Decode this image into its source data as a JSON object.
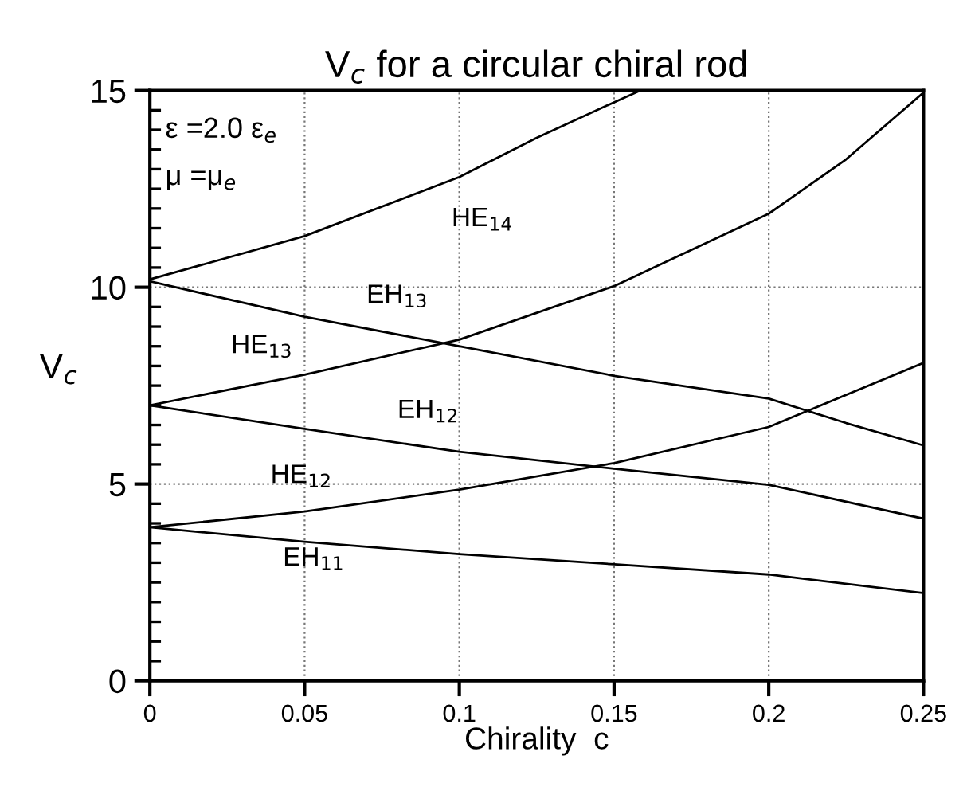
{
  "chart_data": {
    "type": "line",
    "title": "V$_{c}$ for a circular chiral rod",
    "xlabel": "Chirality  c",
    "ylabel": "V$_{c}$",
    "xlim": [
      0,
      0.25
    ],
    "ylim": [
      0,
      15
    ],
    "xticks": [
      0,
      0.05,
      0.1,
      0.15,
      0.2,
      0.25
    ],
    "yticks": [
      0,
      5,
      10,
      15
    ],
    "grid": true,
    "line_style": "solid",
    "marker": "none",
    "series": [
      {
        "color": "#000000",
        "x": [
          0,
          0.05,
          0.1,
          0.125,
          0.15,
          0.1585
        ],
        "values": [
          10.2,
          11.3,
          12.8,
          13.8,
          14.7,
          15
        ]
      },
      {
        "color": "#000000",
        "x": [
          0,
          0.05,
          0.1,
          0.15,
          0.2,
          0.225,
          0.25
        ],
        "values": [
          10.15,
          9.25,
          8.5,
          7.75,
          7.17,
          6.55,
          5.98
        ]
      },
      {
        "color": "#000000",
        "x": [
          0,
          0.05,
          0.1,
          0.15,
          0.2,
          0.225,
          0.25
        ],
        "values": [
          7.0,
          7.78,
          8.67,
          10.03,
          11.87,
          13.25,
          14.95
        ]
      },
      {
        "color": "#000000",
        "x": [
          0,
          0.05,
          0.1,
          0.15,
          0.2,
          0.25
        ],
        "values": [
          7.0,
          6.4,
          5.82,
          5.39,
          4.98,
          4.12
        ]
      },
      {
        "color": "#000000",
        "x": [
          0,
          0.05,
          0.1,
          0.15,
          0.2,
          0.25
        ],
        "values": [
          3.9,
          4.3,
          4.86,
          5.53,
          6.45,
          8.08
        ]
      },
      {
        "color": "#000000",
        "x": [
          0,
          0.05,
          0.1,
          0.15,
          0.2,
          0.25
        ],
        "values": [
          3.9,
          3.53,
          3.22,
          2.96,
          2.7,
          2.23
        ]
      }
    ],
    "annotations": [
      "ε =2.0 ε$_{e}$",
      "μ =μ$_{e}$",
      "HE$_{14}$",
      "EH$_{13}$",
      "HE$_{13}$",
      "EH$_{12}$",
      "HE$_{12}$",
      "EH$_{11}$"
    ]
  }
}
